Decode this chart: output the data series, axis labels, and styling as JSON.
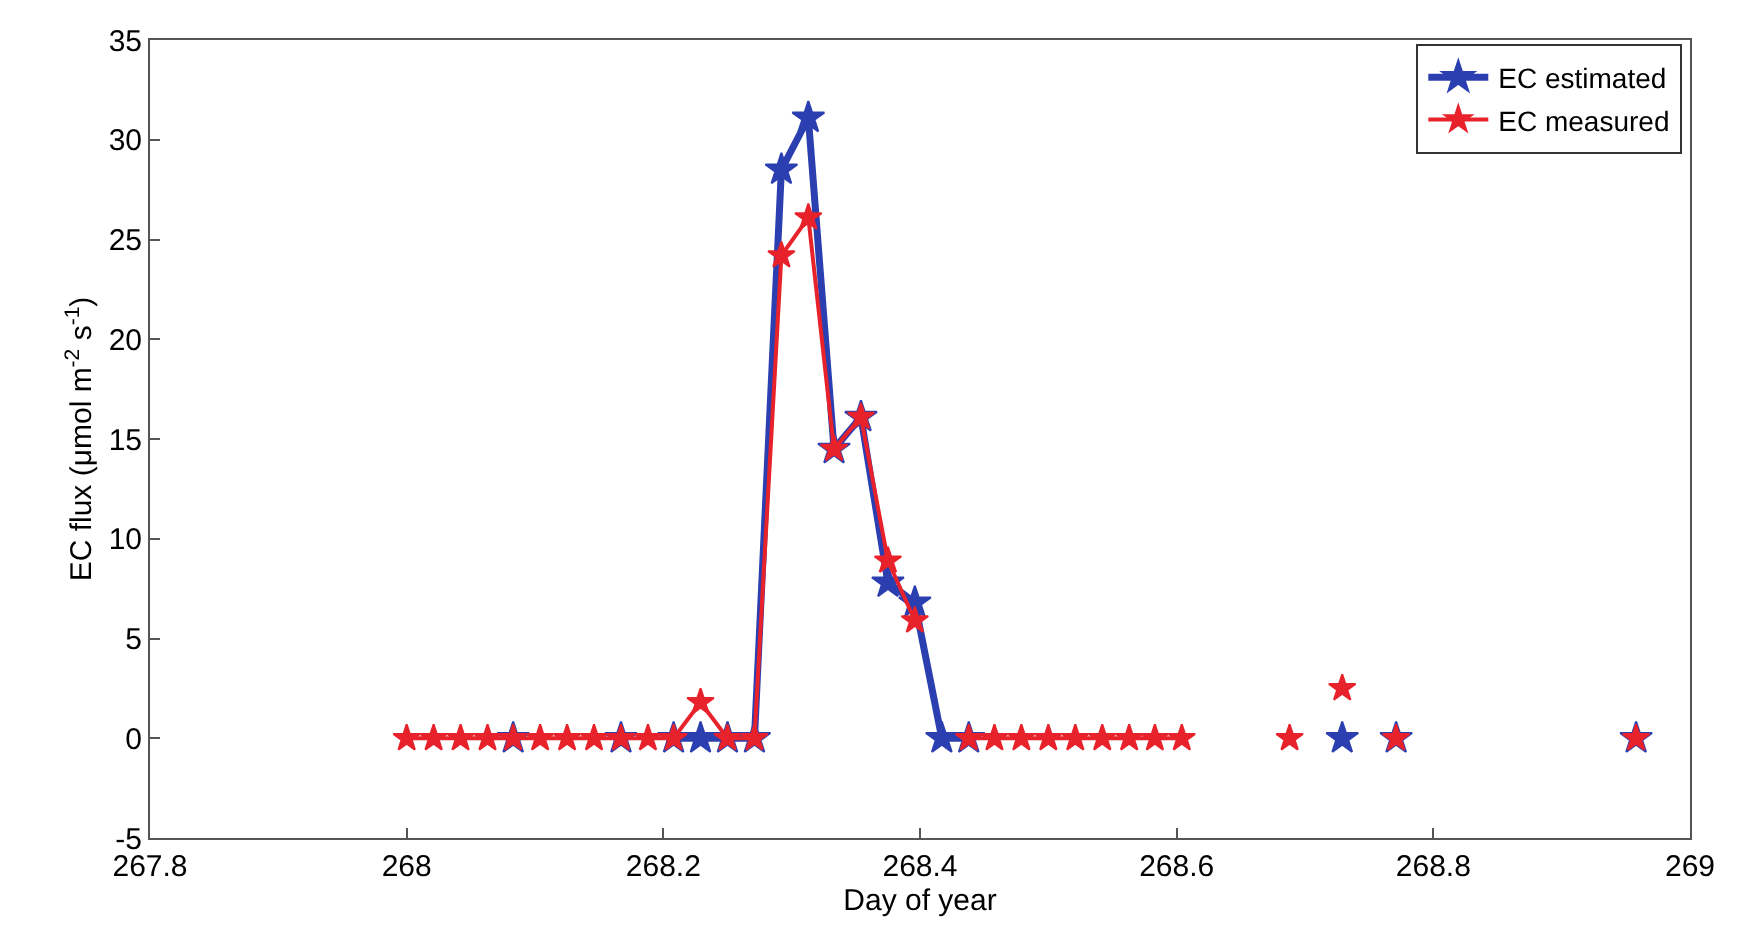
{
  "chart_data": {
    "type": "line",
    "xlabel": "Day of year",
    "ylabel": "EC flux (μmol m$^{-2}$ s$^{-1}$)",
    "x": [
      268.0,
      268.021,
      268.042,
      268.063,
      268.083,
      268.104,
      268.125,
      268.146,
      268.167,
      268.188,
      268.208,
      268.229,
      268.25,
      268.271,
      268.292,
      268.313,
      268.333,
      268.354,
      268.375,
      268.396,
      268.417,
      268.438,
      268.458,
      268.479,
      268.5,
      268.521,
      268.542,
      268.563,
      268.583,
      268.604,
      268.625,
      268.646,
      268.667,
      268.688,
      268.708,
      268.729,
      268.75,
      268.771,
      268.792,
      268.813,
      268.833,
      268.854,
      268.875,
      268.896,
      268.917,
      268.938,
      268.958
    ],
    "series": [
      {
        "name": "EC estimated",
        "color": "#2b3fb0",
        "values": [
          null,
          null,
          null,
          null,
          0,
          null,
          null,
          null,
          0,
          null,
          0,
          0,
          0,
          0,
          28.5,
          31.1,
          14.5,
          16.1,
          7.8,
          6.8,
          0,
          0,
          null,
          null,
          null,
          null,
          null,
          null,
          null,
          null,
          null,
          null,
          null,
          null,
          null,
          0,
          null,
          0,
          null,
          null,
          null,
          null,
          null,
          null,
          null,
          null,
          0
        ]
      },
      {
        "name": "EC measured",
        "color": "#e8222b",
        "values": [
          0,
          0,
          0,
          0,
          0,
          0,
          0,
          0,
          0,
          0,
          0,
          1.8,
          0,
          0,
          24.2,
          26.1,
          14.5,
          16.1,
          8.9,
          5.9,
          null,
          0,
          0,
          0,
          0,
          0,
          0,
          0,
          0,
          0,
          null,
          null,
          null,
          0,
          null,
          2.5,
          null,
          0,
          null,
          null,
          null,
          null,
          null,
          null,
          null,
          null,
          0
        ]
      }
    ],
    "xlim": [
      267.8,
      269
    ],
    "xticks": [
      267.8,
      268,
      268.2,
      268.4,
      268.6,
      268.8,
      269
    ],
    "ylim": [
      -5,
      35
    ],
    "yticks": [
      -5,
      0,
      5,
      10,
      15,
      20,
      25,
      30,
      35
    ],
    "legend": "top right",
    "marker": "star",
    "line_style": "solid"
  }
}
